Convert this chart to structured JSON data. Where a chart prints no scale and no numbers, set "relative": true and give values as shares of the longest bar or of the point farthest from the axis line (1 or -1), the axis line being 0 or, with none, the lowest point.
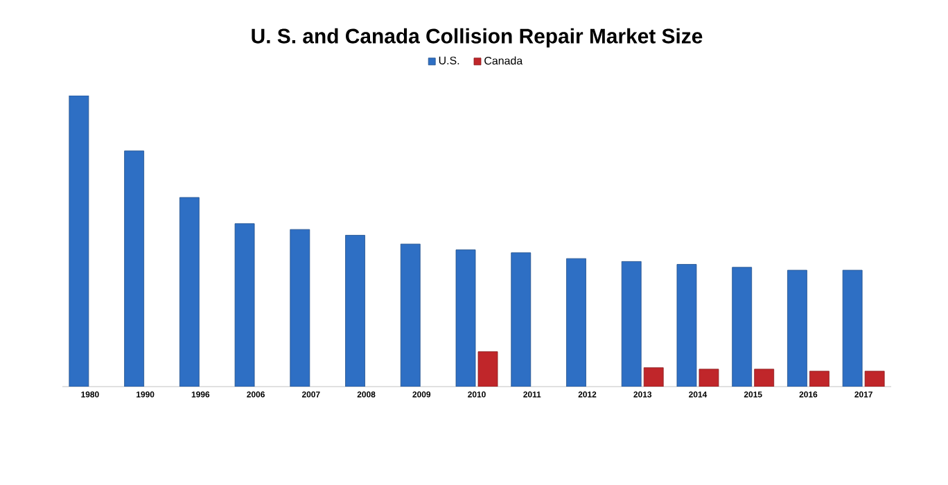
{
  "chart_data": {
    "type": "bar",
    "title": "U. S. and Canada Collision Repair Market Size",
    "relative": true,
    "legend": "top",
    "categories": [
      "1980",
      "1990",
      "1996",
      "2006",
      "2007",
      "2008",
      "2009",
      "2010",
      "2011",
      "2012",
      "2013",
      "2014",
      "2015",
      "2016",
      "2017"
    ],
    "series": [
      {
        "name": "U.S.",
        "color": "#2e6fc4",
        "values": [
          1,
          0.81,
          0.65,
          0.56,
          0.54,
          0.52,
          0.49,
          0.47,
          0.46,
          0.44,
          0.43,
          0.42,
          0.41,
          0.4,
          0.4
        ]
      },
      {
        "name": "Canada",
        "color": "#c0262a",
        "values": [
          null,
          null,
          null,
          null,
          null,
          null,
          null,
          0.12,
          null,
          null,
          0.065,
          0.06,
          0.06,
          0.053,
          0.053
        ]
      }
    ]
  }
}
